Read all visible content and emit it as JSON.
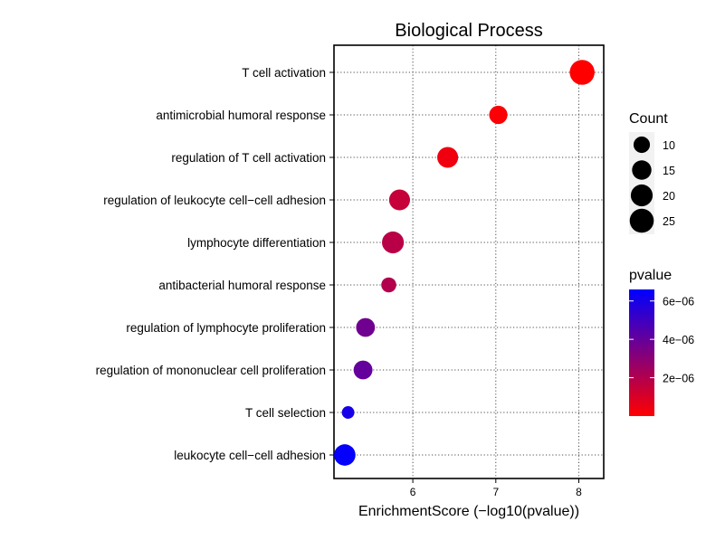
{
  "chart_data": {
    "type": "scatter",
    "title": "Biological Process",
    "xlabel": "EnrichmentScore (−log10(pvalue))",
    "ylabel": "",
    "xlim": [
      5.05,
      8.3
    ],
    "xticks": [
      6,
      7,
      8
    ],
    "xtick_labels": [
      "6",
      "7",
      "8"
    ],
    "grid": true,
    "categories": [
      "T cell activation",
      "antimicrobial humoral response",
      "regulation of T cell activation",
      "regulation of leukocyte cell−cell adhesion",
      "lymphocyte differentiation",
      "antibacterial humoral response",
      "regulation of lymphocyte proliferation",
      "regulation of mononuclear cell proliferation",
      "T cell selection",
      "leukocyte cell−cell adhesion"
    ],
    "points": [
      {
        "term": "T cell activation",
        "x": 8.04,
        "count": 27,
        "pvalue": 1e-08
      },
      {
        "term": "antimicrobial humoral response",
        "x": 7.03,
        "count": 13,
        "pvalue": 1e-07
      },
      {
        "term": "regulation of T cell activation",
        "x": 6.42,
        "count": 18,
        "pvalue": 4e-07
      },
      {
        "term": "regulation of leukocyte cell−cell adhesion",
        "x": 5.84,
        "count": 18,
        "pvalue": 1.5e-06
      },
      {
        "term": "lymphocyte differentiation",
        "x": 5.76,
        "count": 20,
        "pvalue": 1.8e-06
      },
      {
        "term": "antibacterial humoral response",
        "x": 5.71,
        "count": 8,
        "pvalue": 2e-06
      },
      {
        "term": "regulation of lymphocyte proliferation",
        "x": 5.43,
        "count": 14,
        "pvalue": 3.7e-06
      },
      {
        "term": "regulation of mononuclear cell proliferation",
        "x": 5.4,
        "count": 14,
        "pvalue": 4e-06
      },
      {
        "term": "T cell selection",
        "x": 5.22,
        "count": 5,
        "pvalue": 6e-06
      },
      {
        "term": "leukocyte cell−cell adhesion",
        "x": 5.18,
        "count": 19,
        "pvalue": 6.5e-06
      }
    ],
    "size_legend": {
      "title": "Count",
      "values": [
        10,
        15,
        20,
        25
      ],
      "labels": [
        "10",
        "15",
        "20",
        "25"
      ]
    },
    "color_legend": {
      "title": "pvalue",
      "low_color": "#ff0000",
      "high_color": "#0000ff",
      "range": [
        0,
        6.6e-06
      ],
      "ticks": [
        6e-06,
        4e-06,
        2e-06
      ],
      "tick_labels": [
        "6e−06",
        "4e−06",
        "2e−06"
      ]
    },
    "legend_position": "right"
  }
}
